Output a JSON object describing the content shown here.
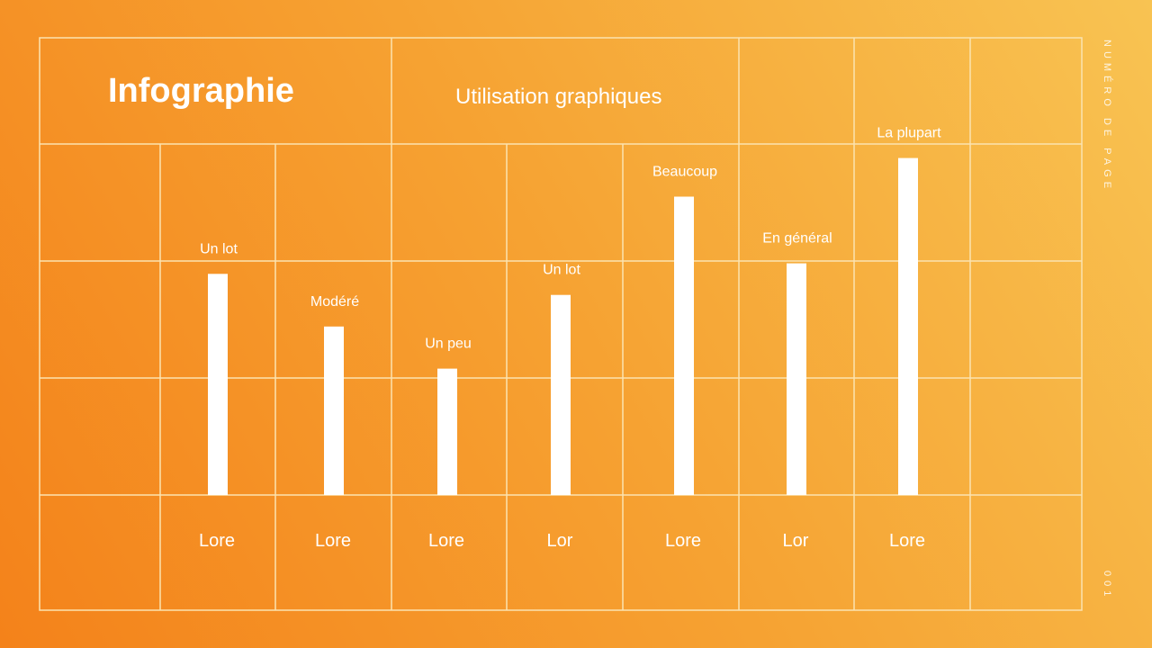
{
  "title": "Infographie",
  "side": {
    "page_label": "NUMÉRO DE PAGE",
    "page_number": "001"
  },
  "colors": {
    "bar": "#ffffff",
    "grid": "#fbe3b0",
    "background_start": "#f4821a",
    "background_end": "#f8c352"
  },
  "chart_data": {
    "type": "bar",
    "title": "Utilisation graphiques",
    "categories": [
      "Lore",
      "Lore",
      "Lore",
      "Lor",
      "Lore",
      "Lor",
      "Lore"
    ],
    "values": [
      63,
      48,
      36,
      57,
      85,
      66,
      96
    ],
    "data_labels": [
      "Un lot",
      "Modéré",
      "Un peu",
      "Un lot",
      "Beaucoup",
      "En général",
      "La plupart"
    ],
    "ylim": [
      0,
      100
    ],
    "grid": true,
    "xlabel": "",
    "ylabel": ""
  }
}
